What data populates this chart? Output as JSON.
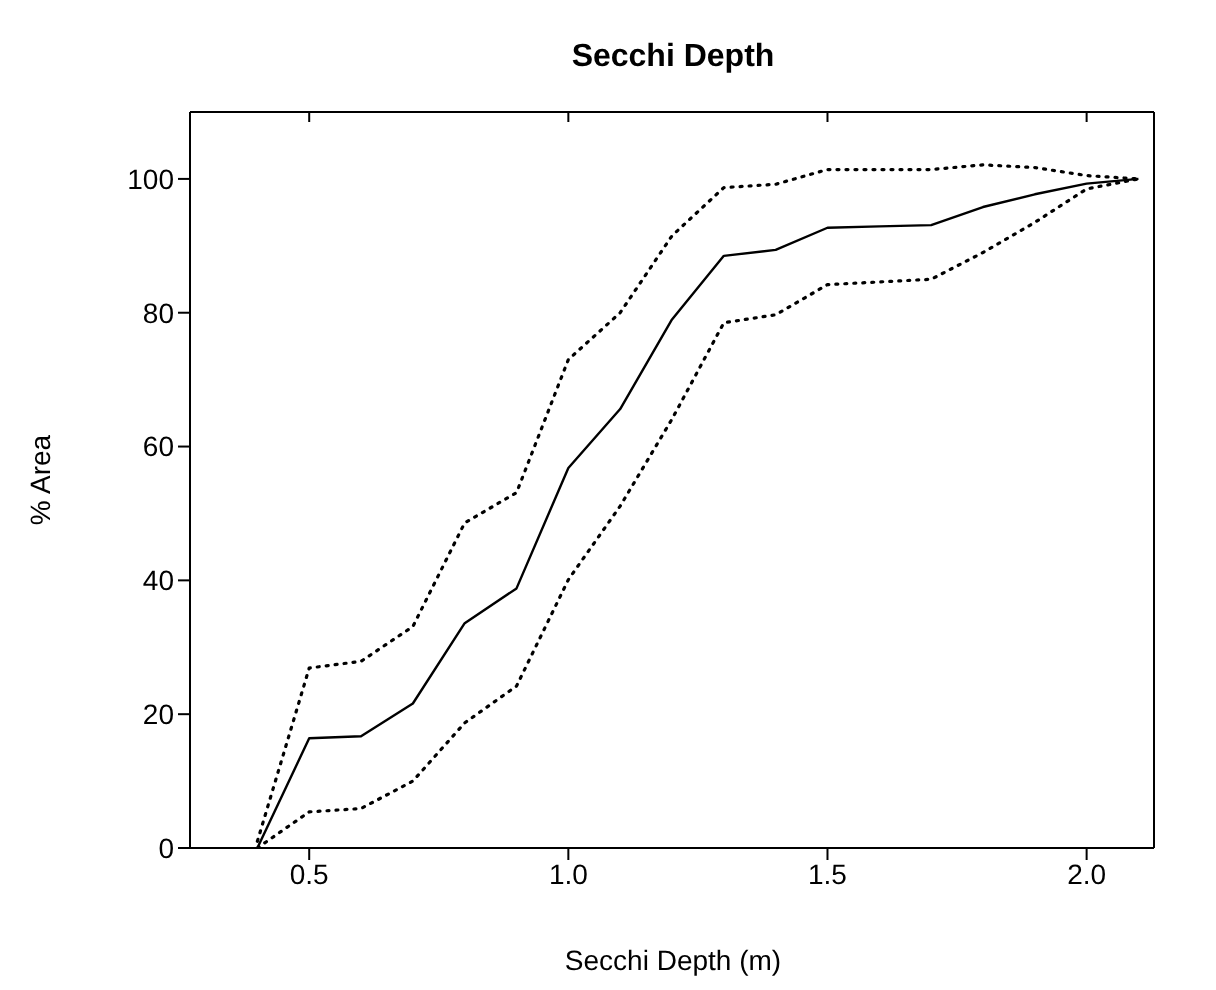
{
  "chart_data": {
    "type": "line",
    "title": "Secchi Depth",
    "xlabel": "Secchi Depth (m)",
    "ylabel": "% Area",
    "x": [
      0.4,
      0.5,
      0.6,
      0.7,
      0.8,
      0.9,
      1.0,
      1.1,
      1.2,
      1.3,
      1.4,
      1.5,
      1.6,
      1.7,
      1.8,
      1.9,
      2.0,
      2.1
    ],
    "series": [
      {
        "color": "#000000",
        "line_style": "solid",
        "values": [
          0,
          16.4,
          16.7,
          21.6,
          33.6,
          38.8,
          56.8,
          65.6,
          79,
          88.5,
          89.4,
          92.7,
          92.9,
          93.1,
          95.8,
          97.7,
          99.3,
          100
        ]
      },
      {
        "color": "#000000",
        "line_style": "dotted",
        "values": [
          0,
          5.4,
          5.9,
          10,
          18.7,
          24.2,
          40.1,
          51.1,
          64.1,
          78.5,
          79.7,
          84.2,
          84.6,
          85,
          89,
          93.5,
          98.5,
          100
        ]
      },
      {
        "color": "#000000",
        "line_style": "dotted",
        "values": [
          1,
          26.9,
          27.9,
          33.1,
          48.6,
          53.1,
          73,
          80,
          91.5,
          98.7,
          99.2,
          101.4,
          101.4,
          101.4,
          102.1,
          101.7,
          100.5,
          100
        ]
      }
    ],
    "xlim": [
      0.27,
      2.13
    ],
    "xticks": [
      0.5,
      {
        "value": 1,
        "label": "1.0"
      },
      1.5,
      {
        "value": 2,
        "label": "2.0"
      }
    ],
    "ylim": [
      0,
      110
    ],
    "yticks": [
      0,
      20,
      40,
      60,
      80,
      100
    ],
    "grid": false,
    "marker": "none"
  }
}
